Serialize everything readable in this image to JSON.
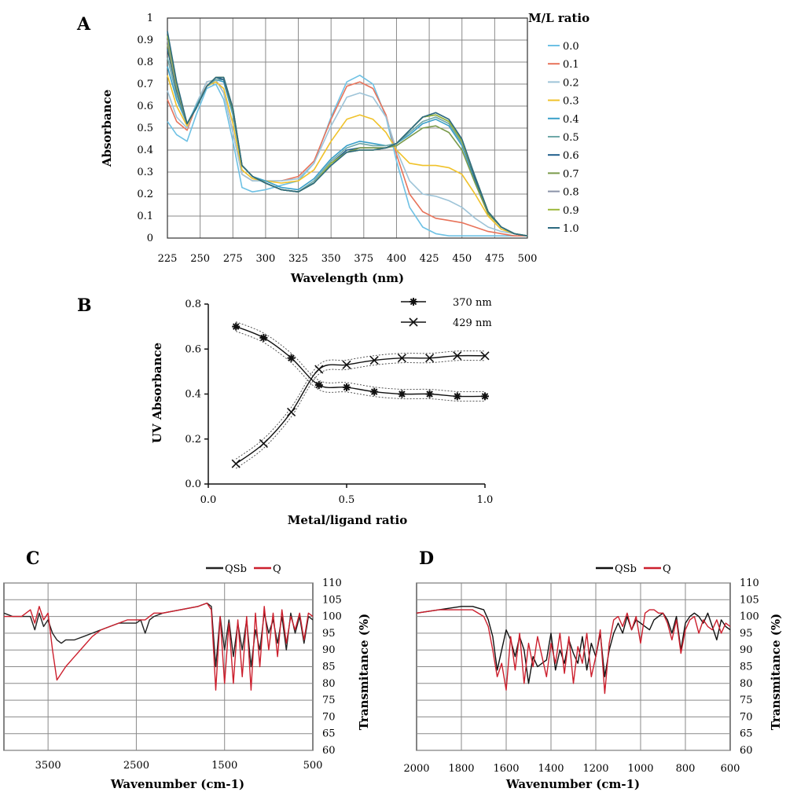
{
  "chart_data": [
    {
      "panel": "A",
      "type": "line",
      "xlabel": "Wavelength (nm)",
      "ylabel": "Absorbance",
      "legend_title": "M/L ratio",
      "legend_position": "right",
      "grid": true,
      "xlim": [
        225,
        500
      ],
      "ylim": [
        0,
        1
      ],
      "x_ticks": [
        "225",
        "250",
        "275",
        "300",
        "325",
        "350",
        "375",
        "400",
        "425",
        "450",
        "475",
        "500"
      ],
      "y_ticks": [
        "0",
        "0.1",
        "0.2",
        "0.3",
        "0.4",
        "0.5",
        "0.6",
        "0.7",
        "0.8",
        "0.9",
        "1"
      ],
      "x": [
        225,
        232,
        240,
        247,
        255,
        262,
        268,
        275,
        282,
        290,
        300,
        312,
        325,
        337,
        350,
        362,
        372,
        382,
        392,
        400,
        410,
        420,
        430,
        440,
        450,
        460,
        470,
        480,
        490,
        500
      ],
      "series": [
        {
          "name": "0.0",
          "color": "#6ec1e4",
          "values": [
            0.53,
            0.47,
            0.44,
            0.56,
            0.68,
            0.7,
            0.63,
            0.44,
            0.23,
            0.21,
            0.22,
            0.24,
            0.26,
            0.34,
            0.55,
            0.71,
            0.74,
            0.7,
            0.55,
            0.35,
            0.14,
            0.05,
            0.02,
            0.01,
            0.01,
            0.01,
            0.01,
            0.01,
            0.01,
            0.01
          ]
        },
        {
          "name": "0.1",
          "color": "#e8735a",
          "values": [
            0.63,
            0.53,
            0.49,
            0.6,
            0.71,
            0.72,
            0.66,
            0.48,
            0.29,
            0.26,
            0.26,
            0.26,
            0.28,
            0.35,
            0.54,
            0.69,
            0.71,
            0.68,
            0.56,
            0.38,
            0.2,
            0.12,
            0.09,
            0.08,
            0.07,
            0.05,
            0.03,
            0.02,
            0.01,
            0.01
          ]
        },
        {
          "name": "0.2",
          "color": "#9ec4d8",
          "values": [
            0.67,
            0.55,
            0.5,
            0.61,
            0.71,
            0.72,
            0.66,
            0.48,
            0.29,
            0.26,
            0.26,
            0.26,
            0.27,
            0.34,
            0.51,
            0.64,
            0.66,
            0.64,
            0.55,
            0.4,
            0.26,
            0.2,
            0.19,
            0.17,
            0.14,
            0.09,
            0.05,
            0.03,
            0.02,
            0.01
          ]
        },
        {
          "name": "0.3",
          "color": "#f0c22a",
          "values": [
            0.74,
            0.6,
            0.51,
            0.6,
            0.69,
            0.71,
            0.68,
            0.52,
            0.31,
            0.27,
            0.26,
            0.25,
            0.26,
            0.31,
            0.44,
            0.54,
            0.56,
            0.54,
            0.48,
            0.4,
            0.34,
            0.33,
            0.33,
            0.32,
            0.29,
            0.2,
            0.1,
            0.04,
            0.02,
            0.01
          ]
        },
        {
          "name": "0.4",
          "color": "#3aa0c9",
          "values": [
            0.78,
            0.63,
            0.52,
            0.6,
            0.69,
            0.72,
            0.71,
            0.56,
            0.33,
            0.28,
            0.26,
            0.23,
            0.22,
            0.27,
            0.36,
            0.42,
            0.44,
            0.43,
            0.42,
            0.43,
            0.47,
            0.52,
            0.54,
            0.51,
            0.42,
            0.26,
            0.12,
            0.05,
            0.02,
            0.01
          ]
        },
        {
          "name": "0.5",
          "color": "#6fa8a8",
          "values": [
            0.82,
            0.65,
            0.52,
            0.59,
            0.69,
            0.72,
            0.72,
            0.57,
            0.33,
            0.28,
            0.25,
            0.22,
            0.21,
            0.26,
            0.35,
            0.41,
            0.43,
            0.42,
            0.42,
            0.43,
            0.48,
            0.53,
            0.55,
            0.52,
            0.43,
            0.27,
            0.12,
            0.05,
            0.02,
            0.01
          ]
        },
        {
          "name": "0.6",
          "color": "#1f5e8c",
          "values": [
            0.86,
            0.67,
            0.52,
            0.59,
            0.69,
            0.73,
            0.72,
            0.58,
            0.33,
            0.28,
            0.25,
            0.22,
            0.21,
            0.25,
            0.34,
            0.4,
            0.41,
            0.41,
            0.41,
            0.43,
            0.49,
            0.55,
            0.56,
            0.53,
            0.44,
            0.27,
            0.12,
            0.05,
            0.02,
            0.01
          ]
        },
        {
          "name": "0.7",
          "color": "#7a9a4a",
          "values": [
            0.88,
            0.68,
            0.52,
            0.59,
            0.69,
            0.73,
            0.73,
            0.58,
            0.33,
            0.28,
            0.25,
            0.22,
            0.21,
            0.25,
            0.34,
            0.39,
            0.41,
            0.41,
            0.41,
            0.42,
            0.46,
            0.5,
            0.51,
            0.48,
            0.4,
            0.25,
            0.11,
            0.05,
            0.02,
            0.01
          ]
        },
        {
          "name": "0.8",
          "color": "#8a93a8",
          "values": [
            0.9,
            0.69,
            0.52,
            0.59,
            0.69,
            0.73,
            0.73,
            0.59,
            0.33,
            0.28,
            0.25,
            0.22,
            0.21,
            0.25,
            0.34,
            0.39,
            0.4,
            0.4,
            0.41,
            0.43,
            0.49,
            0.55,
            0.57,
            0.54,
            0.44,
            0.28,
            0.12,
            0.05,
            0.02,
            0.01
          ]
        },
        {
          "name": "0.9",
          "color": "#9cb83a",
          "values": [
            0.92,
            0.7,
            0.52,
            0.59,
            0.69,
            0.73,
            0.73,
            0.59,
            0.33,
            0.28,
            0.25,
            0.22,
            0.21,
            0.25,
            0.34,
            0.39,
            0.4,
            0.4,
            0.41,
            0.43,
            0.49,
            0.55,
            0.56,
            0.53,
            0.44,
            0.28,
            0.12,
            0.05,
            0.02,
            0.01
          ]
        },
        {
          "name": "1.0",
          "color": "#2d6a80",
          "values": [
            0.94,
            0.71,
            0.52,
            0.59,
            0.69,
            0.73,
            0.73,
            0.59,
            0.33,
            0.28,
            0.25,
            0.22,
            0.21,
            0.25,
            0.33,
            0.39,
            0.4,
            0.4,
            0.41,
            0.43,
            0.49,
            0.55,
            0.57,
            0.54,
            0.45,
            0.28,
            0.12,
            0.05,
            0.02,
            0.01
          ]
        }
      ]
    },
    {
      "panel": "B",
      "type": "scatter",
      "xlabel": "Metal/ligand ratio",
      "ylabel": "UV Absorbance",
      "legend_position": "top-right",
      "grid": false,
      "xlim": [
        0,
        1
      ],
      "ylim": [
        0,
        0.8
      ],
      "x_ticks": [
        "0.0",
        "0.5",
        "1.0"
      ],
      "y_ticks": [
        "0.0",
        "0.2",
        "0.4",
        "0.6",
        "0.8"
      ],
      "x": [
        0.1,
        0.2,
        0.3,
        0.4,
        0.5,
        0.6,
        0.7,
        0.8,
        0.9,
        1.0
      ],
      "series": [
        {
          "name": "370 nm",
          "marker": "asterisk",
          "values": [
            0.7,
            0.65,
            0.56,
            0.44,
            0.43,
            0.41,
            0.4,
            0.4,
            0.39,
            0.39
          ]
        },
        {
          "name": "429 nm",
          "marker": "x",
          "values": [
            0.09,
            0.18,
            0.32,
            0.51,
            0.53,
            0.55,
            0.56,
            0.56,
            0.57,
            0.57
          ]
        }
      ]
    },
    {
      "panel": "C",
      "type": "line",
      "xlabel": "Wavenumber (cm-1)",
      "ylabel": "Transmitance (%)",
      "legend_position": "top",
      "grid": true,
      "x_reversed": true,
      "xlim": [
        4000,
        500
      ],
      "ylim": [
        60,
        110
      ],
      "x_ticks": [
        "3500",
        "2500",
        "1500",
        "500"
      ],
      "y_ticks": [
        "60",
        "65",
        "70",
        "75",
        "80",
        "85",
        "90",
        "95",
        "100",
        "105",
        "110"
      ],
      "x": [
        4000,
        3900,
        3800,
        3700,
        3650,
        3600,
        3550,
        3500,
        3450,
        3400,
        3350,
        3300,
        3200,
        3100,
        3000,
        2900,
        2800,
        2700,
        2600,
        2500,
        2450,
        2400,
        2350,
        2300,
        2200,
        2000,
        1800,
        1700,
        1650,
        1600,
        1550,
        1500,
        1450,
        1400,
        1350,
        1300,
        1250,
        1200,
        1150,
        1100,
        1050,
        1000,
        950,
        900,
        850,
        800,
        750,
        700,
        650,
        600,
        550,
        500
      ],
      "series": [
        {
          "name": "QSb",
          "color": "#222222",
          "values": [
            101,
            100,
            100,
            100,
            96,
            101,
            97,
            99,
            95,
            93,
            92,
            93,
            93,
            94,
            95,
            96,
            97,
            98,
            98,
            98,
            99,
            95,
            99,
            100,
            101,
            102,
            103,
            104,
            103,
            85,
            100,
            90,
            99,
            88,
            98,
            90,
            99,
            85,
            96,
            90,
            101,
            95,
            99,
            92,
            100,
            90,
            101,
            95,
            100,
            92,
            100,
            99
          ]
        },
        {
          "name": "Q",
          "color": "#cc1f2d",
          "values": [
            100,
            100,
            100,
            102,
            98,
            103,
            99,
            101,
            90,
            81,
            83,
            85,
            88,
            91,
            94,
            96,
            97,
            98,
            99,
            99,
            99,
            99,
            100,
            101,
            101,
            102,
            103,
            104,
            102,
            78,
            100,
            80,
            98,
            80,
            99,
            82,
            100,
            78,
            101,
            85,
            103,
            90,
            101,
            88,
            102,
            92,
            100,
            96,
            101,
            93,
            101,
            100
          ]
        }
      ]
    },
    {
      "panel": "D",
      "type": "line",
      "xlabel": "Wavenumber (cm-1)",
      "ylabel": "Transmitance (%)",
      "legend_position": "top",
      "grid": true,
      "x_reversed": true,
      "xlim": [
        2000,
        600
      ],
      "ylim": [
        60,
        110
      ],
      "x_ticks": [
        "2000",
        "1800",
        "1600",
        "1400",
        "1200",
        "1000",
        "800",
        "600"
      ],
      "y_ticks": [
        "60",
        "65",
        "70",
        "75",
        "80",
        "85",
        "90",
        "95",
        "100",
        "105",
        "110"
      ],
      "x": [
        2000,
        1900,
        1800,
        1750,
        1700,
        1680,
        1660,
        1640,
        1620,
        1600,
        1580,
        1560,
        1540,
        1520,
        1500,
        1480,
        1460,
        1440,
        1420,
        1400,
        1380,
        1360,
        1340,
        1320,
        1300,
        1280,
        1260,
        1240,
        1220,
        1200,
        1180,
        1160,
        1140,
        1120,
        1100,
        1080,
        1060,
        1040,
        1020,
        1000,
        980,
        960,
        940,
        920,
        900,
        880,
        860,
        840,
        820,
        800,
        780,
        760,
        740,
        720,
        700,
        680,
        660,
        640,
        620,
        600
      ],
      "series": [
        {
          "name": "QSb",
          "color": "#111111",
          "values": [
            101,
            102,
            103,
            103,
            102,
            99,
            94,
            84,
            90,
            96,
            93,
            88,
            94,
            90,
            80,
            88,
            85,
            86,
            87,
            95,
            84,
            90,
            86,
            93,
            89,
            86,
            94,
            84,
            92,
            88,
            95,
            82,
            90,
            95,
            98,
            95,
            100,
            96,
            99,
            98,
            97,
            96,
            99,
            100,
            101,
            99,
            95,
            100,
            90,
            98,
            100,
            101,
            100,
            98,
            101,
            97,
            93,
            99,
            97,
            96
          ]
        },
        {
          "name": "Q",
          "color": "#cc1f2d",
          "values": [
            101,
            102,
            102,
            102,
            100,
            97,
            90,
            82,
            86,
            78,
            94,
            84,
            95,
            80,
            92,
            85,
            94,
            88,
            82,
            92,
            86,
            95,
            83,
            94,
            80,
            91,
            86,
            95,
            82,
            88,
            96,
            77,
            92,
            99,
            100,
            97,
            101,
            96,
            100,
            92,
            101,
            102,
            102,
            101,
            101,
            98,
            93,
            99,
            89,
            96,
            99,
            100,
            95,
            99,
            97,
            96,
            99,
            95,
            98,
            97
          ]
        }
      ]
    }
  ]
}
